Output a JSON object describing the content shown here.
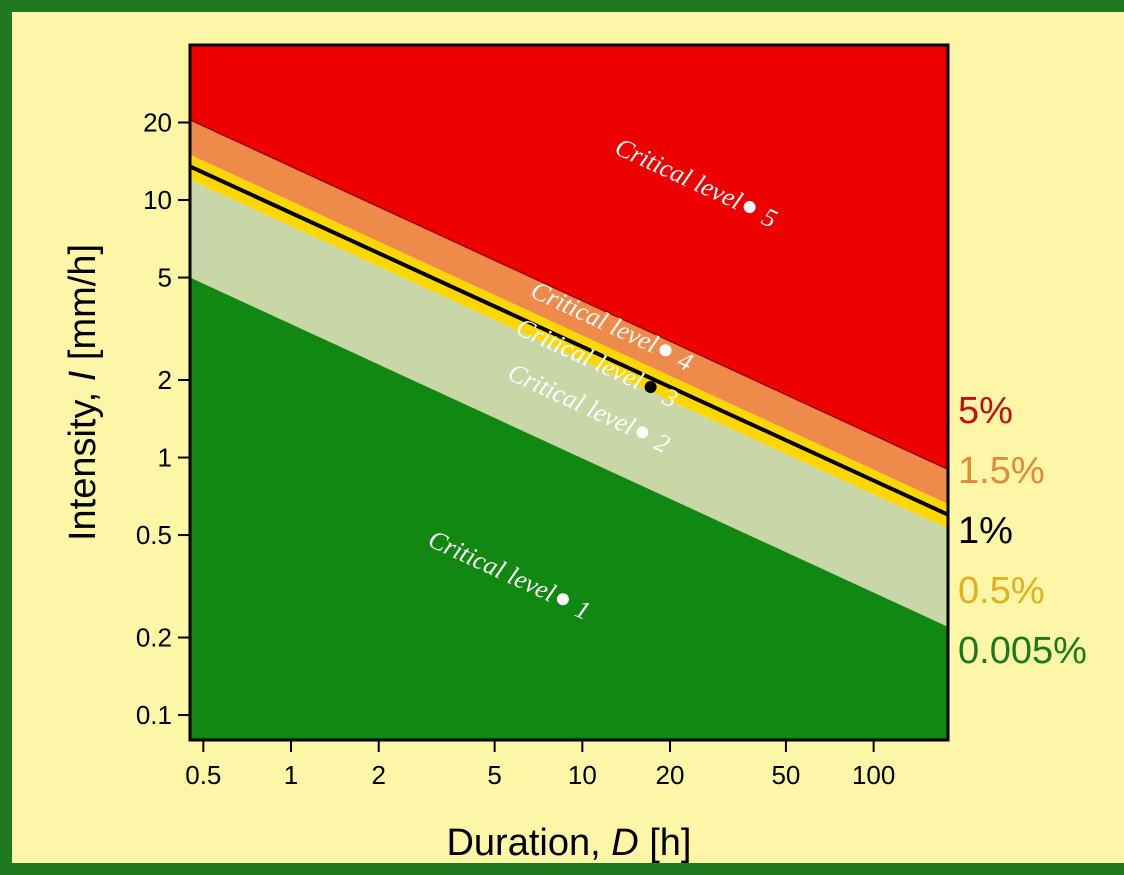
{
  "chart_data": {
    "type": "area",
    "xscale": "log",
    "yscale": "log",
    "xlim": [
      0.45,
      180
    ],
    "ylim": [
      0.08,
      40
    ],
    "xticks": [
      0.5,
      1,
      2,
      5,
      10,
      20,
      50,
      100
    ],
    "xtick_labels": [
      "0.5",
      "1",
      "2",
      "5",
      "10",
      "20",
      "50",
      "100"
    ],
    "yticks": [
      0.1,
      0.2,
      0.5,
      1,
      2,
      5,
      10,
      20
    ],
    "ytick_labels": [
      "0.1",
      "0.2",
      "0.5",
      "1",
      "2",
      "5",
      "10",
      "20"
    ],
    "xlabel": {
      "prefix": "Duration, ",
      "var": "D",
      "suffix": " [h]"
    },
    "ylabel": {
      "prefix": "Intensity, ",
      "var": "I",
      "suffix": " [mm/h]"
    },
    "thresholds": [
      {
        "label": "5%",
        "color": "#c01010",
        "at_x_min": 20.5,
        "at_x_max": 0.9
      },
      {
        "label": "1.5%",
        "color": "#e08a3c",
        "at_x_min": 15.0,
        "at_x_max": 0.66
      },
      {
        "label": "1%",
        "color": "#000000",
        "at_x_min": 13.5,
        "at_x_max": 0.6
      },
      {
        "label": "0.5%",
        "color": "#e0b020",
        "at_x_min": 12.0,
        "at_x_max": 0.53
      },
      {
        "label": "0.005%",
        "color": "#1a7a1a",
        "at_x_min": 5.0,
        "at_x_max": 0.22
      }
    ],
    "regions": [
      {
        "name": "level-5",
        "fill": "#ee0000"
      },
      {
        "name": "level-4",
        "fill": "#ee8a4a"
      },
      {
        "name": "level-3",
        "fill": "#ffd700"
      },
      {
        "name": "level-2",
        "fill": "#c8d6a8"
      },
      {
        "name": "level-1",
        "fill": "#118811"
      }
    ],
    "zone_labels": [
      {
        "text": "Critical level",
        "num": "5",
        "x": 35,
        "y": 9.0,
        "color": "#ffffff"
      },
      {
        "text": "Critical level",
        "num": "4",
        "x": 18,
        "y": 2.5,
        "color": "#ffffff"
      },
      {
        "text": "Critical level",
        "num": "3",
        "x": 16,
        "y": 1.8,
        "color": "#000000"
      },
      {
        "text": "Critical level",
        "num": "2",
        "x": 15,
        "y": 1.2,
        "color": "#ffffff"
      },
      {
        "text": "Critical level",
        "num": "1",
        "x": 8,
        "y": 0.27,
        "color": "#ffffff"
      }
    ]
  }
}
